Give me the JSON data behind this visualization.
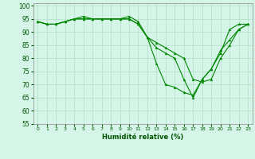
{
  "xlabel": "Humidité relative (%)",
  "bg_color": "#d5f5e8",
  "grid_color": "#b0ddc8",
  "line_color": "#008800",
  "x_ticks": [
    0,
    1,
    2,
    3,
    4,
    5,
    6,
    7,
    8,
    9,
    10,
    11,
    12,
    13,
    14,
    15,
    16,
    17,
    18,
    19,
    20,
    21,
    22,
    23
  ],
  "ylim": [
    55,
    101
  ],
  "xlim": [
    -0.5,
    23.5
  ],
  "y_ticks": [
    55,
    60,
    65,
    70,
    75,
    80,
    85,
    90,
    95,
    100
  ],
  "series": [
    [
      94,
      93,
      93,
      94,
      95,
      96,
      95,
      95,
      95,
      95,
      96,
      94,
      88,
      78,
      70,
      69,
      67,
      66,
      72,
      76,
      82,
      91,
      93,
      93
    ],
    [
      94,
      93,
      93,
      94,
      95,
      95,
      95,
      95,
      95,
      95,
      95,
      93,
      88,
      86,
      84,
      82,
      80,
      72,
      71,
      72,
      80,
      85,
      91,
      93
    ],
    [
      94,
      93,
      93,
      94,
      95,
      95,
      95,
      95,
      95,
      95,
      95,
      93,
      88,
      84,
      82,
      80,
      72,
      65,
      72,
      76,
      83,
      87,
      91,
      93
    ]
  ]
}
